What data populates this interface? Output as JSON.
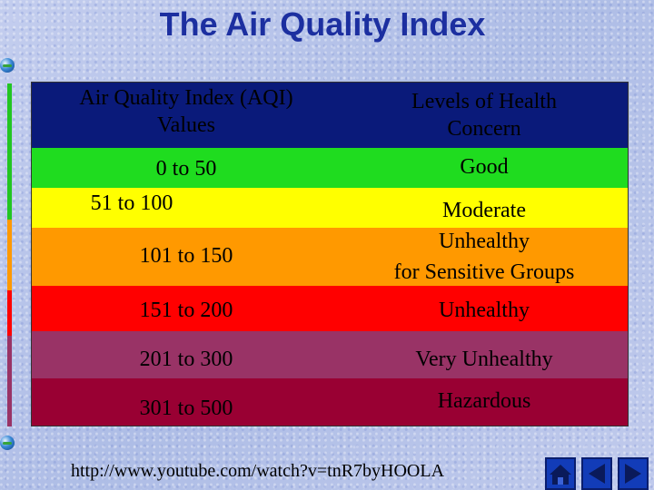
{
  "slide": {
    "title": "The Air Quality Index",
    "footer_link": "http://www.youtube.com/watch?v=tnR7byHOOLA"
  },
  "table": {
    "header": {
      "col1": [
        "Air Quality Index (AQI)",
        "Values"
      ],
      "col2": [
        "Levels of Health",
        "Concern"
      ]
    },
    "rows": [
      {
        "range": "0 to 50",
        "level": "Good",
        "color": "#1fdc1f"
      },
      {
        "range": "51 to 100",
        "level": "Moderate",
        "color": "#ffff00"
      },
      {
        "range": "101 to 150",
        "level_lines": [
          "Unhealthy",
          "for Sensitive Groups"
        ],
        "color": "#ff9900"
      },
      {
        "range": "151 to 200",
        "level": "Unhealthy",
        "color": "#ff0000"
      },
      {
        "range": "201 to 300",
        "level": "Very Unhealthy",
        "color": "#993366"
      },
      {
        "range": "301 to 500",
        "level": "Hazardous",
        "color": "#990033"
      }
    ],
    "header_color": "#0a1a7a"
  },
  "nav": {
    "icons": [
      "home-icon",
      "back-arrow-icon",
      "forward-arrow-icon"
    ]
  }
}
